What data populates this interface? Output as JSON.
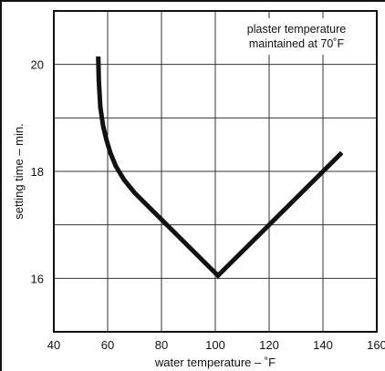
{
  "chart_data": {
    "type": "line",
    "xlabel": "water temperature – ˚F",
    "ylabel": "setting time – min.",
    "xlim": [
      40,
      160
    ],
    "ylim": [
      15,
      21
    ],
    "x_ticks": [
      "40",
      "60",
      "80",
      "100",
      "120",
      "140",
      "160"
    ],
    "y_ticks": [
      "16",
      "18",
      "20"
    ],
    "grid": true,
    "annotation": [
      "plaster temperature",
      "maintained at 70˚F"
    ],
    "series": [
      {
        "color": "#111111",
        "points": [
          [
            56.5,
            20.15
          ],
          [
            56.7,
            19.7
          ],
          [
            57.3,
            19.2
          ],
          [
            58.3,
            18.85
          ],
          [
            59.5,
            18.6
          ],
          [
            61.0,
            18.35
          ],
          [
            63.0,
            18.1
          ],
          [
            66.0,
            17.85
          ],
          [
            70.0,
            17.6
          ],
          [
            80.0,
            17.1
          ],
          [
            90.0,
            16.6
          ],
          [
            101.0,
            16.05
          ],
          [
            147.0,
            18.35
          ]
        ]
      }
    ]
  }
}
